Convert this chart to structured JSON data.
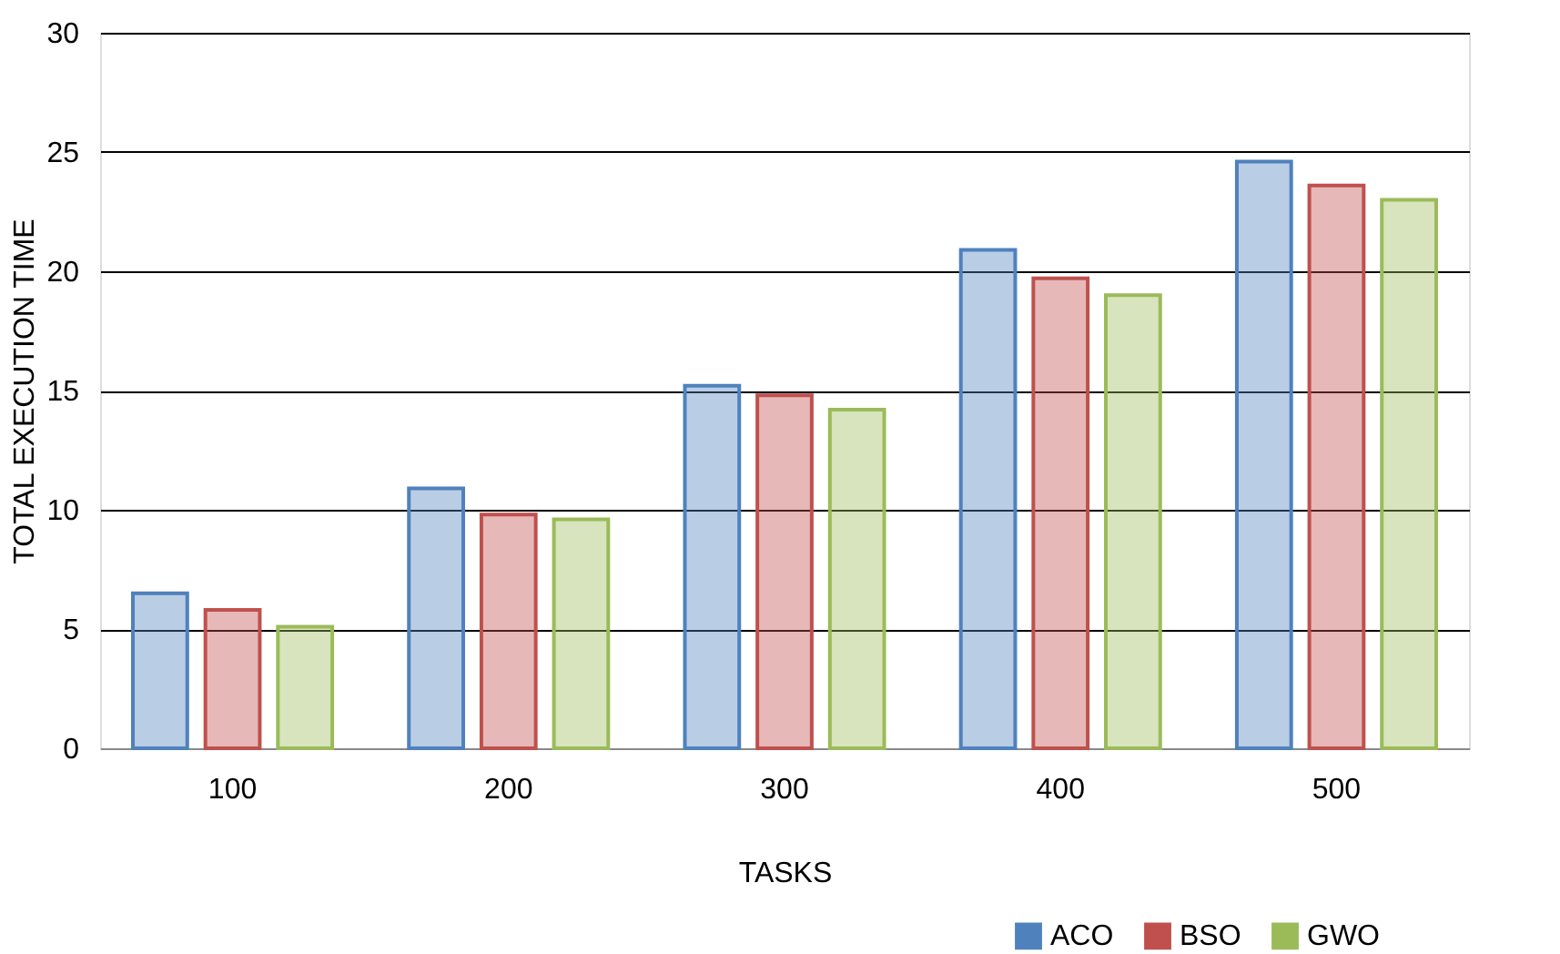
{
  "chart_data": {
    "type": "bar",
    "xlabel": "TASKS",
    "ylabel": "TOTAL EXECUTION TIME",
    "categories": [
      "100",
      "200",
      "300",
      "400",
      "500"
    ],
    "series": [
      {
        "name": "ACO",
        "color": "#4f81bd",
        "values": [
          6.5,
          10.9,
          15.2,
          20.9,
          24.6
        ]
      },
      {
        "name": "BSO",
        "color": "#c0504d",
        "values": [
          5.8,
          9.8,
          14.8,
          19.7,
          23.6
        ]
      },
      {
        "name": "GWO",
        "color": "#9bbb59",
        "values": [
          5.1,
          9.6,
          14.2,
          19.0,
          23.0
        ]
      }
    ],
    "ylim": [
      0,
      30
    ],
    "yticks": [
      0,
      5,
      10,
      15,
      20,
      25,
      30
    ],
    "grid": "y",
    "legend": "bottom right"
  }
}
